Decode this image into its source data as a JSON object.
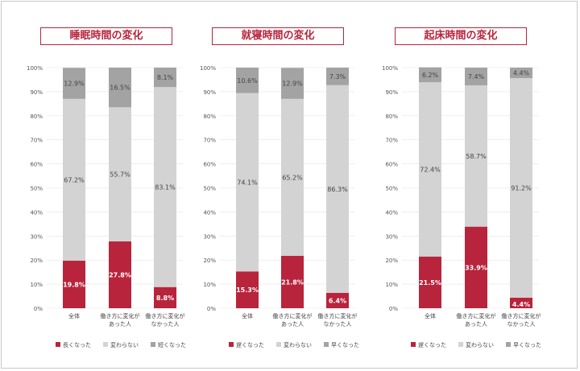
{
  "colors": {
    "bottom": "#b8243c",
    "middle": "#d3d3d3",
    "top": "#a3a3a3",
    "title": "#b8243c"
  },
  "chart_data": [
    {
      "type": "bar",
      "stacked": true,
      "title": "睡眠時間の変化",
      "categories": [
        [
          "全体"
        ],
        [
          "働き方に変化が",
          "あった人"
        ],
        [
          "働き方に変化が",
          "なかった人"
        ]
      ],
      "yticks": [
        "0%",
        "10%",
        "20%",
        "30%",
        "40%",
        "50%",
        "60%",
        "70%",
        "80%",
        "90%",
        "100%"
      ],
      "ylim": [
        0,
        100
      ],
      "series": [
        {
          "name": "長くなった",
          "values": [
            19.8,
            27.8,
            8.8
          ],
          "labels": [
            "19.8%",
            "27.8%",
            "8.8%"
          ]
        },
        {
          "name": "変わらない",
          "values": [
            67.2,
            55.7,
            83.1
          ],
          "labels": [
            "67.2%",
            "55.7%",
            "83.1%"
          ]
        },
        {
          "name": "短くなった",
          "values": [
            12.9,
            16.5,
            8.1
          ],
          "labels": [
            "12.9%",
            "16.5%",
            "8.1%"
          ]
        }
      ],
      "legend_position": "bottom"
    },
    {
      "type": "bar",
      "stacked": true,
      "title": "就寝時間の変化",
      "categories": [
        [
          "全体"
        ],
        [
          "働き方に変化が",
          "あった人"
        ],
        [
          "働き方に変化が",
          "なかった人"
        ]
      ],
      "yticks": [
        "0%",
        "10%",
        "20%",
        "30%",
        "40%",
        "50%",
        "60%",
        "70%",
        "80%",
        "90%",
        "100%"
      ],
      "ylim": [
        0,
        100
      ],
      "series": [
        {
          "name": "遅くなった",
          "values": [
            15.3,
            21.8,
            6.4
          ],
          "labels": [
            "15.3%",
            "21.8%",
            "6.4%"
          ]
        },
        {
          "name": "変わらない",
          "values": [
            74.1,
            65.2,
            86.3
          ],
          "labels": [
            "74.1%",
            "65.2%",
            "86.3%"
          ]
        },
        {
          "name": "早くなった",
          "values": [
            10.6,
            12.9,
            7.3
          ],
          "labels": [
            "10.6%",
            "12.9%",
            "7.3%"
          ]
        }
      ],
      "legend_position": "bottom"
    },
    {
      "type": "bar",
      "stacked": true,
      "title": "起床時間の変化",
      "categories": [
        [
          "全体"
        ],
        [
          "働き方に変化が",
          "あった人"
        ],
        [
          "働き方に変化が",
          "なかった人"
        ]
      ],
      "yticks": [
        "0%",
        "10%",
        "20%",
        "30%",
        "40%",
        "50%",
        "60%",
        "70%",
        "80%",
        "90%",
        "100%"
      ],
      "ylim": [
        0,
        100
      ],
      "series": [
        {
          "name": "遅くなった",
          "values": [
            21.5,
            33.9,
            4.4
          ],
          "labels": [
            "21.5%",
            "33.9%",
            "4.4%"
          ]
        },
        {
          "name": "変わらない",
          "values": [
            72.4,
            58.7,
            91.2
          ],
          "labels": [
            "72.4%",
            "58.7%",
            "91.2%"
          ]
        },
        {
          "name": "早くなった",
          "values": [
            6.2,
            7.4,
            4.4
          ],
          "labels": [
            "6.2%",
            "7.4%",
            "4.4%"
          ]
        }
      ],
      "legend_position": "bottom"
    }
  ]
}
